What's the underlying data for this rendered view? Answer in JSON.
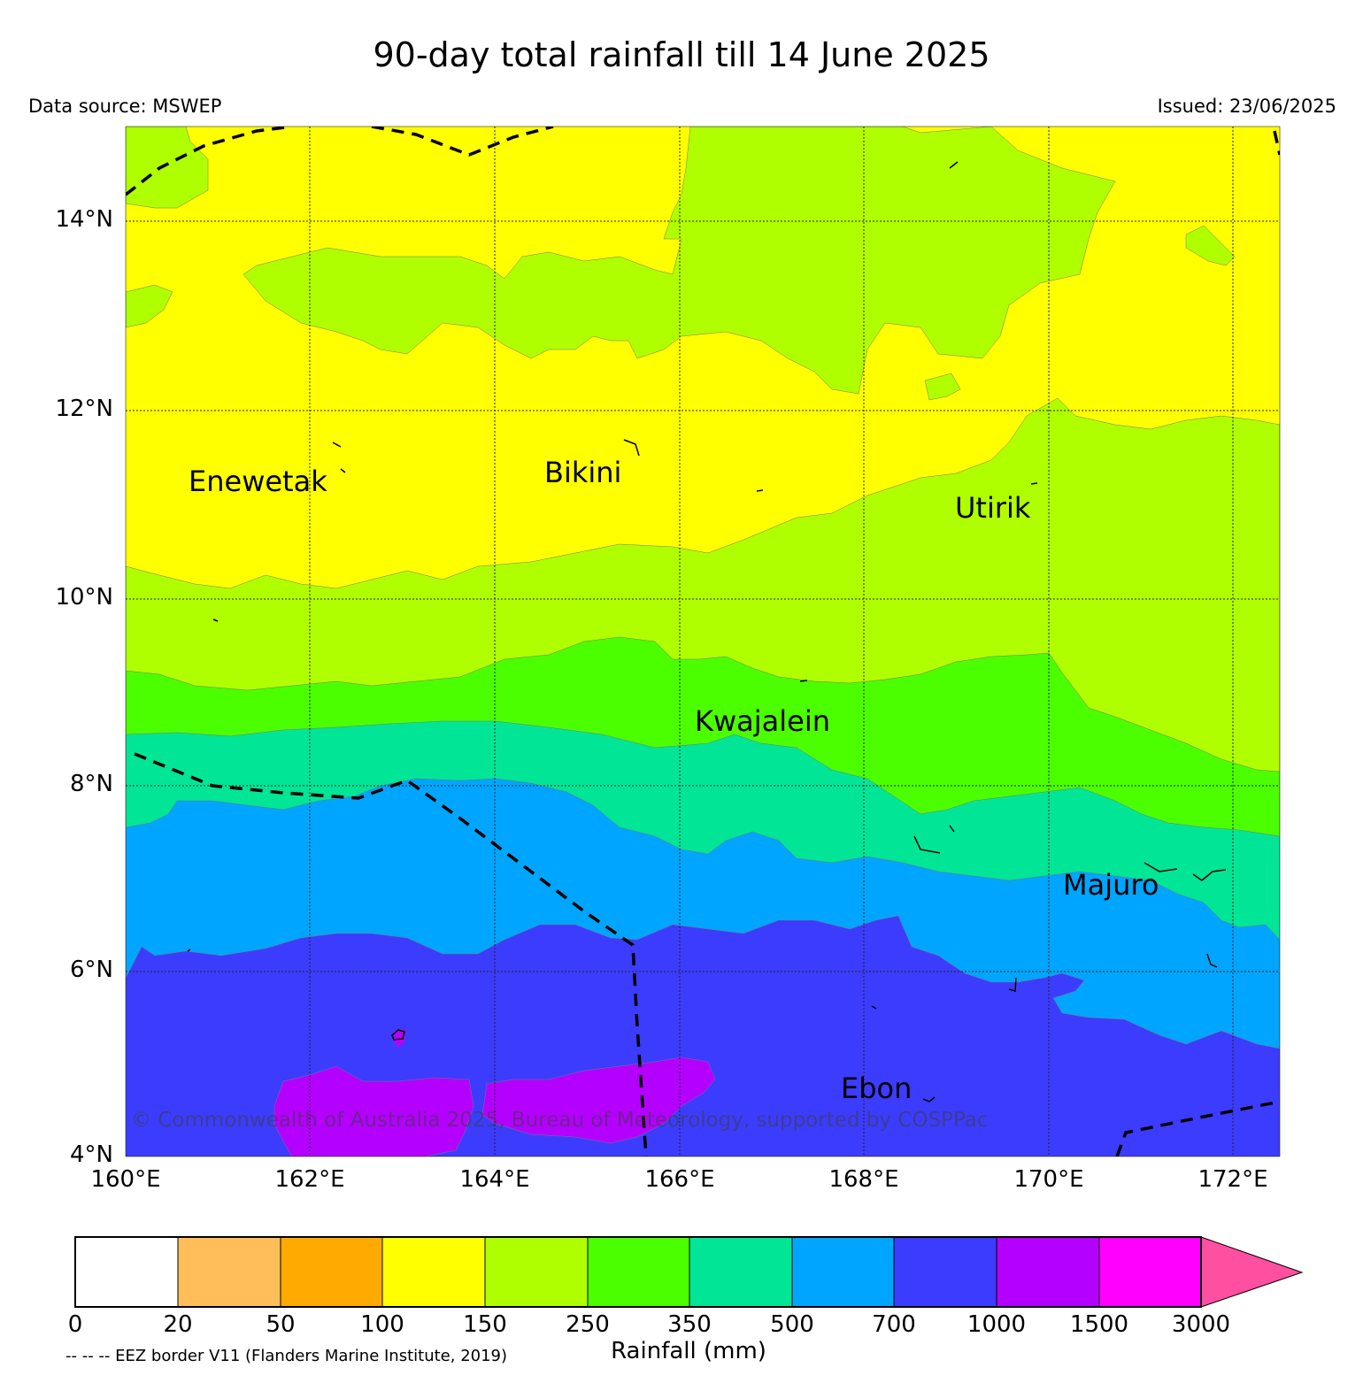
{
  "title": "90-day total rainfall till 14 June 2025",
  "data_source": "Data source: MSWEP",
  "issued": "Issued: 23/06/2025",
  "copyright": "© Commonwealth of Australia 2025, Bureau of Meteorology, supported by COSPPac",
  "eez_note": "-- -- -- EEZ border V11 (Flanders Marine Institute, 2019)",
  "lat_labels": [
    "14°N",
    "12°N",
    "10°N",
    "8°N",
    "6°N",
    "4°N"
  ],
  "lon_labels": [
    "160°E",
    "162°E",
    "164°E",
    "166°E",
    "168°E",
    "170°E",
    "172°E"
  ],
  "places": [
    "Enewetak",
    "Bikini",
    "Utirik",
    "Kwajalein",
    "Majuro",
    "Ebon"
  ],
  "colorbar": {
    "title": "Rainfall (mm)",
    "ticks": [
      "0",
      "20",
      "50",
      "100",
      "150",
      "250",
      "350",
      "500",
      "700",
      "1000",
      "1500",
      "3000"
    ],
    "colors": [
      "#ffffff",
      "#ffbe5a",
      "#ffaa00",
      "#ffff00",
      "#b0ff00",
      "#4cff00",
      "#00e696",
      "#00a5ff",
      "#3c3cff",
      "#b400ff",
      "#ff00ff",
      "#ff4fa0"
    ]
  },
  "map_colors": {
    "yellow": "#ffff00",
    "lightgreen": "#b0ff00",
    "green": "#4cff00",
    "teal": "#00e696",
    "blue": "#00a5ff",
    "indigo": "#3c3cff",
    "purple": "#b400ff"
  }
}
